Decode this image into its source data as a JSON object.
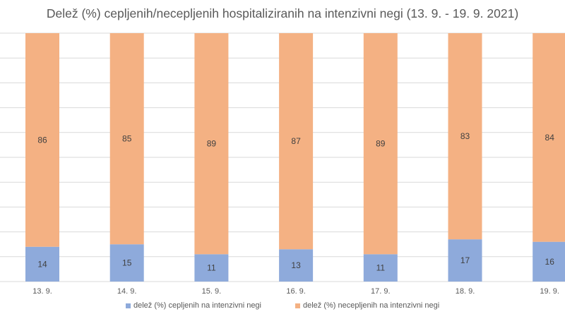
{
  "chart_data": {
    "type": "bar",
    "stacked": true,
    "title": "Delež (%) cepljenih/necepljenih hospitaliziranih na intenzivni negi (13. 9. - 19. 9. 2021)",
    "categories": [
      "13. 9.",
      "14. 9.",
      "15. 9.",
      "16. 9.",
      "17. 9.",
      "18. 9.",
      "19. 9."
    ],
    "series": [
      {
        "name": "delež (%) cepljenih na intenzivni negi",
        "values": [
          14,
          15,
          11,
          13,
          11,
          17,
          16
        ],
        "color": "#8eaadb"
      },
      {
        "name": "delež (%) necepljenih na intenzivni negi",
        "values": [
          86,
          85,
          89,
          87,
          89,
          83,
          84
        ],
        "color": "#f4b183"
      }
    ],
    "ylim": [
      0,
      100
    ],
    "grid": true,
    "legend_position": "bottom",
    "gridline_color": "#d9d9d9",
    "label_color": "#404040"
  }
}
